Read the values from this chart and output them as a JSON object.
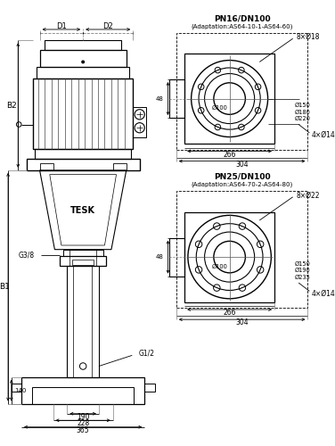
{
  "bg_color": "#ffffff",
  "line_color": "#000000",
  "labels": {
    "D1": "D1",
    "D2": "D2",
    "B1": "B1",
    "B2": "B2",
    "G38": "G3/8",
    "G12": "G1/2",
    "TESK": "TESK",
    "dim_190": "190",
    "dim_228": "228",
    "dim_365": "365",
    "dim_140": "140"
  },
  "flange_top": {
    "title": "PN16/DN100",
    "subtitle": "(Adaptation:AS64-10-1-AS64-60)",
    "holes8": "8×Ø18",
    "holes4": "4×Ø14",
    "d100": "Ø100",
    "d150": "Ø150",
    "d180": "Ø180",
    "d220": "Ø220",
    "dim_48": "48",
    "dim_266": "266",
    "dim_304": "304"
  },
  "flange_bottom": {
    "title": "PN25/DN100",
    "subtitle": "(Adaptation:AS64-70-2-AS64-80)",
    "holes8": "8×Ø22",
    "holes4": "4×Ø14",
    "d100": "Ø100",
    "d150": "Ø150",
    "d195": "Ø190",
    "d235": "Ø235",
    "dim_48": "48",
    "dim_266": "266",
    "dim_304": "304"
  }
}
